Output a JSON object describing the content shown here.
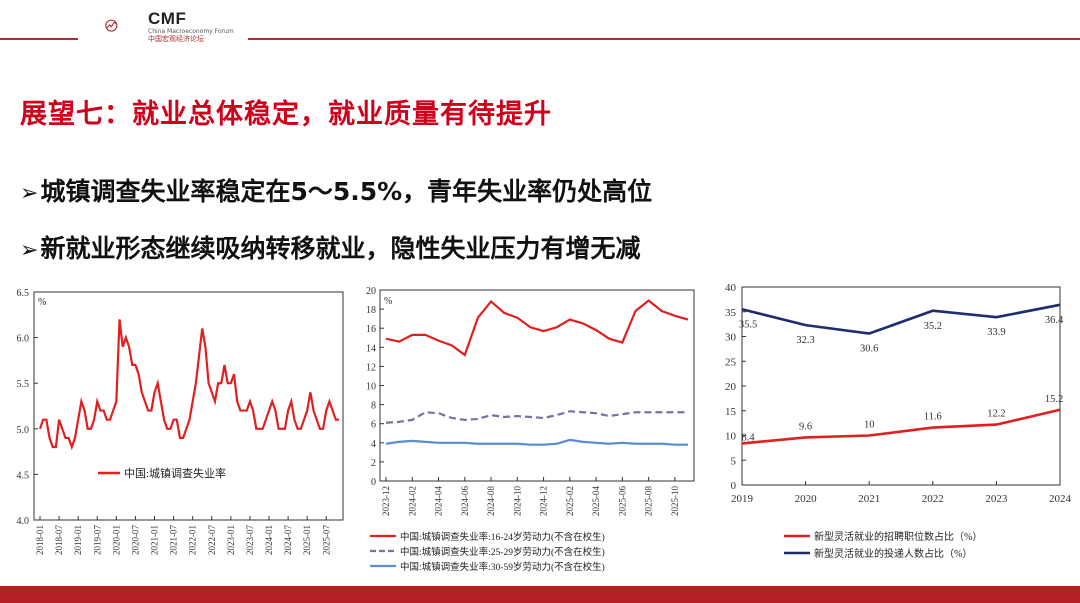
{
  "header": {
    "logo_text": "CMF",
    "logo_subtitle": "China Macroeconomy Forum",
    "logo_cn": "中国宏观经济论坛"
  },
  "slide": {
    "title": "展望七：就业总体稳定，就业质量有待提升",
    "bullets": [
      {
        "arrow": "➢",
        "text": "城镇调查失业率稳定在5～5.5%，青年失业率仍处高位"
      },
      {
        "arrow": "➢",
        "text": "新就业形态继续吸纳转移就业，隐性失业压力有增无减"
      }
    ]
  },
  "colors": {
    "accent": "#d0021b",
    "red_line": "#e02020",
    "navy_line": "#1f2d6b",
    "purple_dash": "#7b6fa8",
    "steel_blue": "#5b8bd0",
    "bar": "#b51f24"
  },
  "chart_data": [
    {
      "type": "line",
      "unit_label": "%",
      "ylim": [
        4.0,
        6.5
      ],
      "yticks": [
        "4.0",
        "4.5",
        "5.0",
        "5.5",
        "6.0",
        "6.5"
      ],
      "xticks": [
        "2018-01",
        "2018-07",
        "2019-01",
        "2019-07",
        "2020-01",
        "2020-07",
        "2021-01",
        "2021-07",
        "2022-01",
        "2022-07",
        "2023-01",
        "2023-07",
        "2024-01",
        "2024-07",
        "2025-01",
        "2025-07"
      ],
      "start": "2018-01",
      "series": [
        {
          "name": "中国:城镇调查失业率",
          "color": "#e02020",
          "values": [
            5.0,
            5.1,
            5.1,
            4.9,
            4.8,
            4.8,
            5.1,
            5.0,
            4.9,
            4.9,
            4.8,
            4.9,
            5.1,
            5.3,
            5.2,
            5.0,
            5.0,
            5.1,
            5.3,
            5.2,
            5.2,
            5.1,
            5.1,
            5.2,
            5.3,
            6.2,
            5.9,
            6.0,
            5.9,
            5.7,
            5.7,
            5.6,
            5.4,
            5.3,
            5.2,
            5.2,
            5.4,
            5.5,
            5.3,
            5.1,
            5.0,
            5.0,
            5.1,
            5.1,
            4.9,
            4.9,
            5.0,
            5.1,
            5.3,
            5.5,
            5.8,
            6.1,
            5.9,
            5.5,
            5.4,
            5.3,
            5.5,
            5.5,
            5.7,
            5.5,
            5.5,
            5.6,
            5.3,
            5.2,
            5.2,
            5.2,
            5.3,
            5.2,
            5.0,
            5.0,
            5.0,
            5.1,
            5.2,
            5.3,
            5.2,
            5.0,
            5.0,
            5.0,
            5.2,
            5.3,
            5.1,
            5.0,
            5.0,
            5.1,
            5.2,
            5.4,
            5.2,
            5.1,
            5.0,
            5.0,
            5.2,
            5.3,
            5.2,
            5.1,
            5.1
          ]
        }
      ]
    },
    {
      "type": "line",
      "unit_label": "%",
      "ylim": [
        0,
        20
      ],
      "yticks": [
        "0",
        "2",
        "4",
        "6",
        "8",
        "10",
        "12",
        "14",
        "16",
        "18",
        "20"
      ],
      "xticks": [
        "2023-12",
        "2024-02",
        "2024-04",
        "2024-06",
        "2024-08",
        "2024-10",
        "2024-12",
        "2025-02",
        "2025-04",
        "2025-06",
        "2025-08",
        "2025-10"
      ],
      "start": "2023-12",
      "series": [
        {
          "name": "中国:城镇调查失业率:16-24岁劳动力(不含在校生)",
          "color": "#e02020",
          "style": "solid",
          "values": [
            14.9,
            14.6,
            15.3,
            15.3,
            14.7,
            14.2,
            13.2,
            17.1,
            18.8,
            17.6,
            17.1,
            16.1,
            15.7,
            16.1,
            16.9,
            16.5,
            15.8,
            14.9,
            14.5,
            17.8,
            18.9,
            17.8,
            17.3,
            16.9
          ]
        },
        {
          "name": "中国:城镇调查失业率:25-29岁劳动力(不含在校生)",
          "color": "#7b6fa8",
          "style": "dashed",
          "values": [
            6.1,
            6.2,
            6.4,
            7.2,
            7.1,
            6.6,
            6.4,
            6.5,
            6.9,
            6.7,
            6.8,
            6.7,
            6.6,
            6.9,
            7.3,
            7.2,
            7.1,
            6.8,
            7.0,
            7.2,
            7.2,
            7.2,
            7.2,
            7.2
          ]
        },
        {
          "name": "中国:城镇调查失业率:30-59岁劳动力(不含在校生)",
          "color": "#5b8bd0",
          "style": "solid",
          "values": [
            3.9,
            4.1,
            4.2,
            4.1,
            4.0,
            4.0,
            4.0,
            3.9,
            3.9,
            3.9,
            3.9,
            3.8,
            3.8,
            3.9,
            4.3,
            4.1,
            4.0,
            3.9,
            4.0,
            3.9,
            3.9,
            3.9,
            3.8,
            3.8
          ]
        }
      ]
    },
    {
      "type": "line",
      "ylim": [
        0,
        40
      ],
      "yticks": [
        "0",
        "5",
        "10",
        "15",
        "20",
        "25",
        "30",
        "35",
        "40"
      ],
      "categories": [
        "2019",
        "2020",
        "2021",
        "2022",
        "2023",
        "2024"
      ],
      "series": [
        {
          "name": "新型灵活就业的招聘职位数占比（%）",
          "color": "#e02020",
          "values": [
            8.4,
            9.6,
            10,
            11.6,
            12.2,
            15.2
          ]
        },
        {
          "name": "新型灵活就业的投递人数占比（%）",
          "color": "#1f2d6b",
          "values": [
            35.5,
            32.3,
            30.6,
            35.2,
            33.9,
            36.4
          ]
        }
      ]
    }
  ]
}
